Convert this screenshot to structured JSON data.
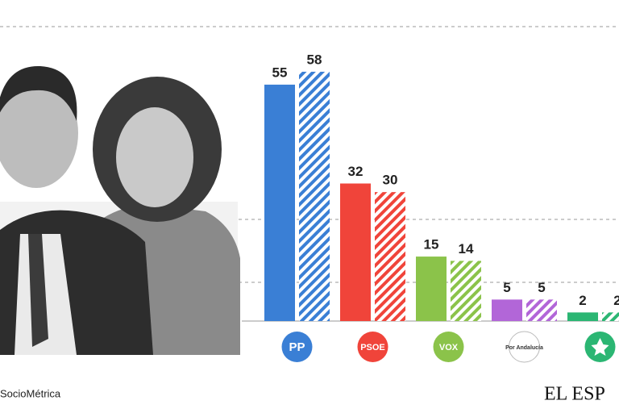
{
  "chart_data": {
    "type": "bar",
    "categories": [
      "PP",
      "PSOE",
      "VOX",
      "Por Andalucía",
      null
    ],
    "colors": [
      "#3a7fd5",
      "#f0443a",
      "#8bc34a",
      "#b266d8",
      "#2bb673"
    ],
    "series": [
      {
        "values": [
          55,
          32,
          15,
          5,
          2
        ]
      },
      {
        "values": [
          58,
          30,
          14,
          5,
          2
        ]
      }
    ],
    "ylim": [
      0,
      70
    ],
    "source": "SocioMétrica",
    "brand": "EL ESP"
  }
}
